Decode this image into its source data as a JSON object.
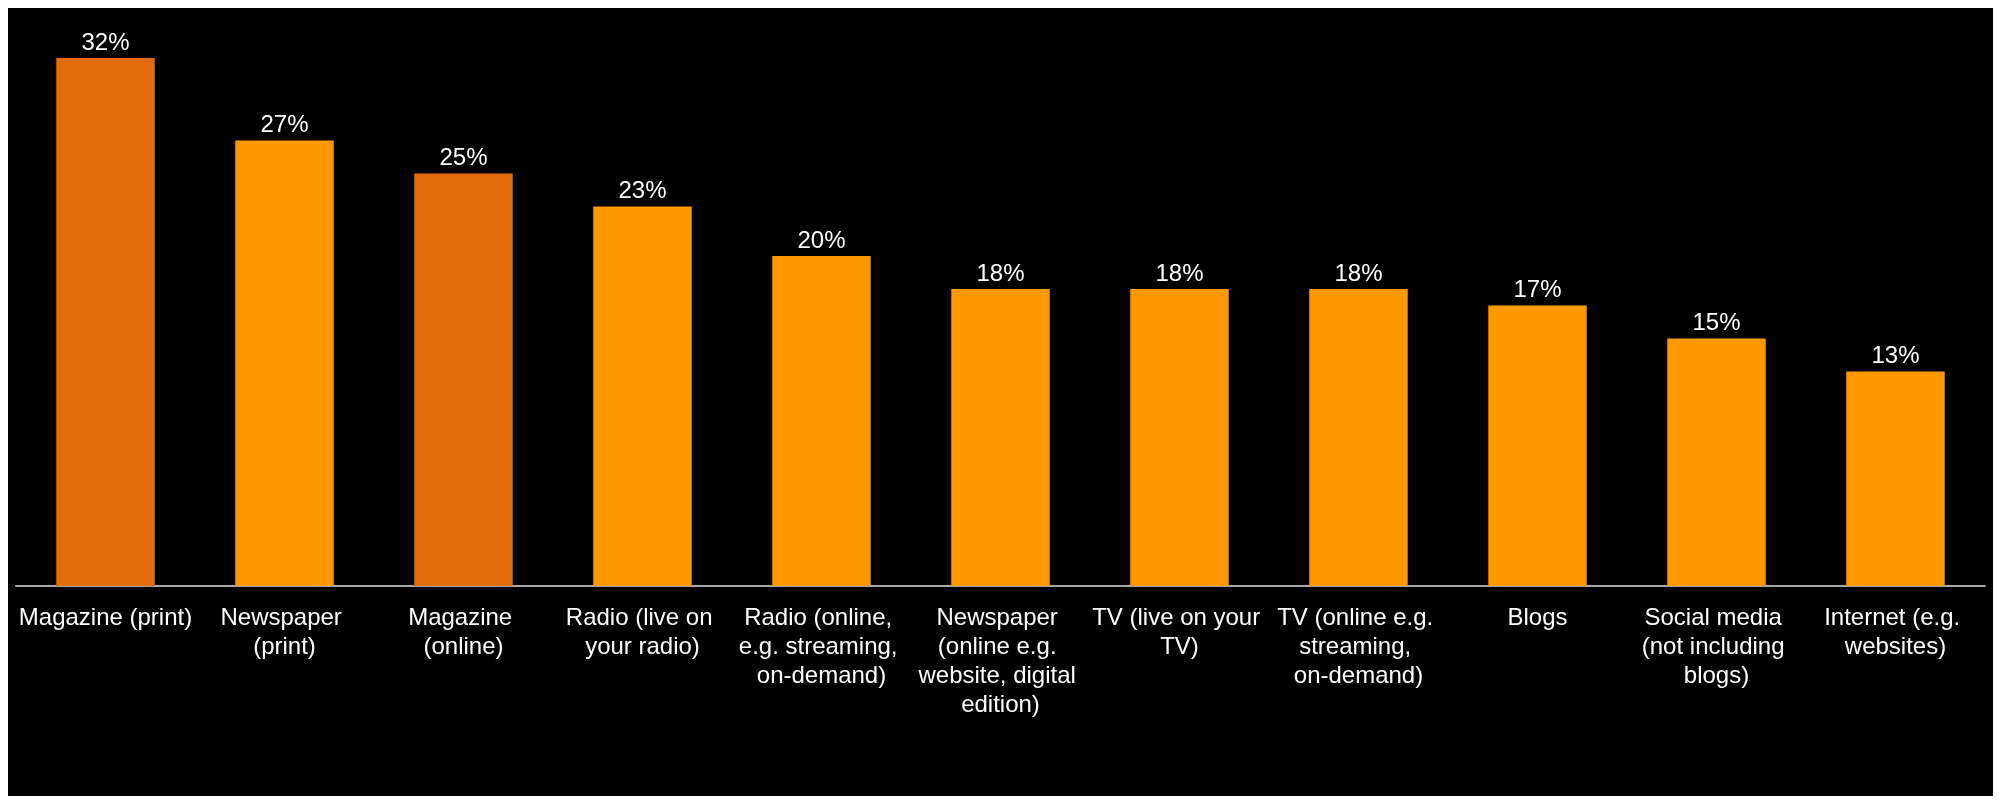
{
  "chart_data": {
    "type": "bar",
    "categories": [
      "Magazine (print)",
      "Newspaper (print)",
      "Magazine (online)",
      "Radio (live on your radio)",
      "Radio (online, e.g. streaming, on-demand)",
      "Newspaper (online e.g. website, digital edition)",
      "TV (live on your TV)",
      "TV (online e.g. streaming, on-demand)",
      "Blogs",
      "Social media (not including blogs)",
      "Internet (e.g. websites)"
    ],
    "values": [
      32,
      27,
      25,
      23,
      20,
      18,
      18,
      18,
      17,
      15,
      13
    ],
    "value_labels": [
      "32%",
      "27%",
      "25%",
      "23%",
      "20%",
      "18%",
      "18%",
      "18%",
      "17%",
      "15%",
      "13%"
    ],
    "colors": [
      "#e36c0a",
      "#ff9900",
      "#e36c0a",
      "#ff9900",
      "#ff9900",
      "#ff9900",
      "#ff9900",
      "#ff9900",
      "#ff9900",
      "#ff9900",
      "#ff9900"
    ]
  }
}
